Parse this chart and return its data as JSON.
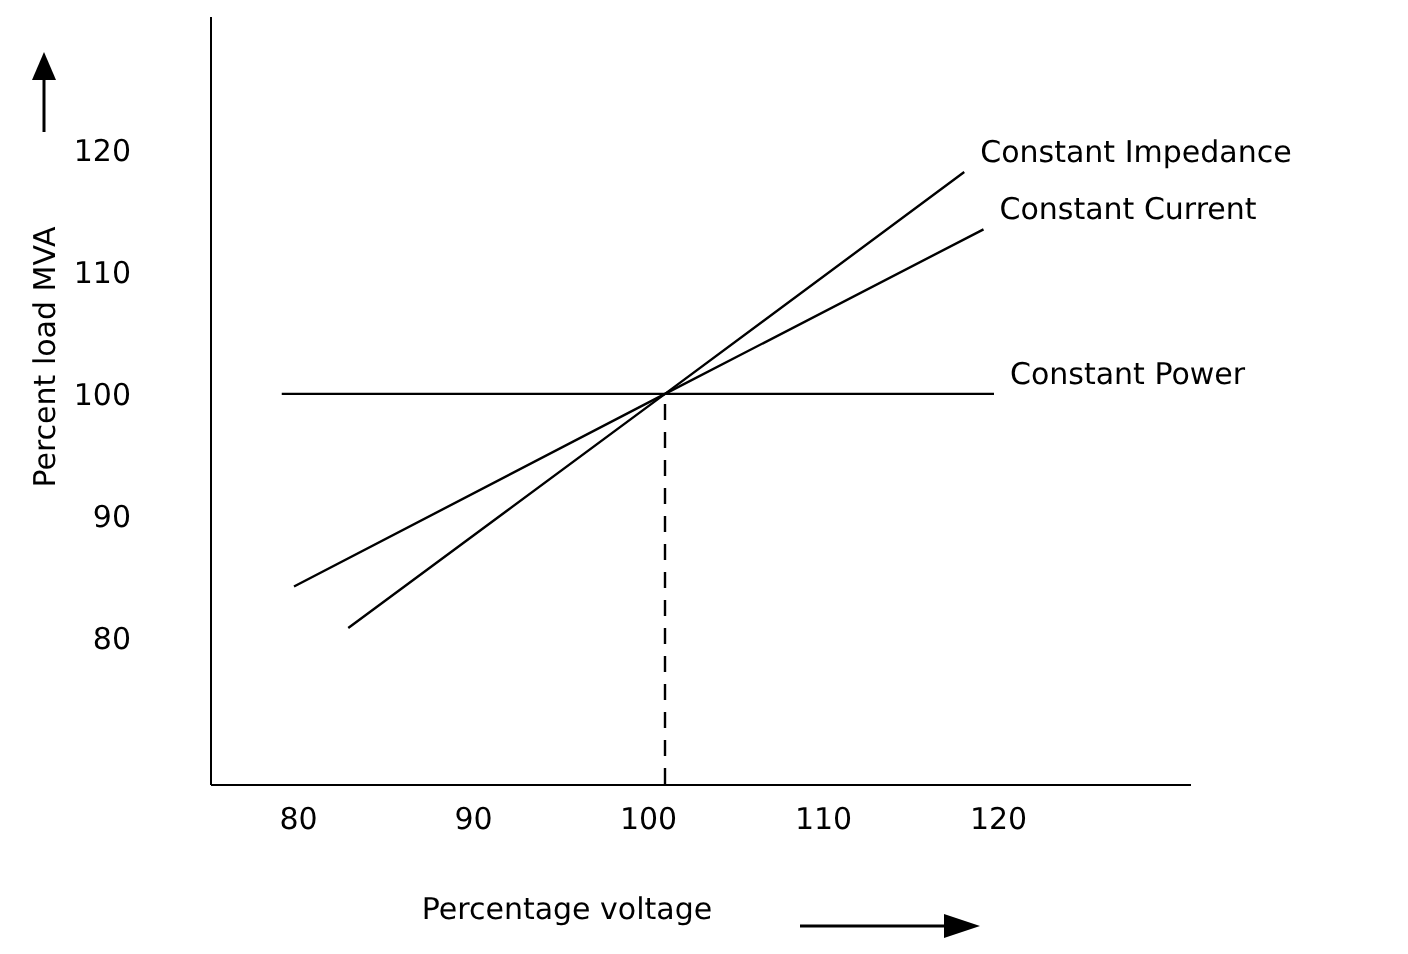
{
  "chart_data": {
    "type": "line",
    "xlabel": "Percentage voltage",
    "ylabel": "Percent load MVA",
    "xlim": [
      75,
      131
    ],
    "ylim": [
      68,
      131
    ],
    "xticks": [
      80,
      90,
      100,
      110,
      120
    ],
    "yticks": [
      80,
      90,
      100,
      110,
      120
    ],
    "grid": false,
    "legend": false,
    "marker": "none",
    "series": [
      {
        "name": "Constant Impedance",
        "color": "#000000",
        "line_style": "solid",
        "x": [
          82.9,
          101,
          118.1
        ],
        "values": [
          80.8,
          100,
          118.2
        ]
      },
      {
        "name": "Constant Current",
        "color": "#000000",
        "line_style": "solid",
        "x": [
          79.8,
          101,
          119.2
        ],
        "values": [
          84.2,
          100,
          113.5
        ]
      },
      {
        "name": "Constant Power",
        "color": "#000000",
        "line_style": "solid",
        "x": [
          79.1,
          101,
          119.8
        ],
        "values": [
          100,
          100,
          100
        ]
      },
      {
        "color": "#000000",
        "line_style": "dashed",
        "x": [
          101,
          101
        ],
        "values": [
          68,
          100
        ]
      }
    ]
  }
}
